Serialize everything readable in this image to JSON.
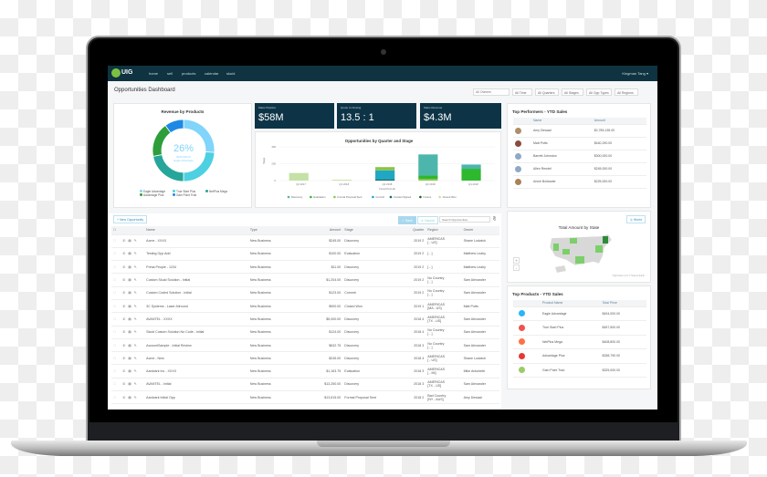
{
  "nav": {
    "logo": "UIG",
    "items": [
      "home",
      "sell",
      "products",
      "calendar",
      "skuid"
    ],
    "user": "Kingman Tang ▾"
  },
  "page": {
    "title": "Opportunities Dashboard"
  },
  "filters": {
    "owners_placeholder": "All Owners",
    "items": [
      "All Time",
      "All Quarters",
      "All Stages",
      "All Opp Types",
      "All Regions"
    ]
  },
  "kpis": [
    {
      "label": "Sales Pipeline",
      "value": "$58M"
    },
    {
      "label": "Quote to Closing",
      "value": "13.5 : 1"
    },
    {
      "label": "Sales Revenue",
      "value": "$4.3M"
    }
  ],
  "revenue": {
    "title": "Revenue by Products",
    "center_pct": "26%",
    "center_amount": "$494,000.00",
    "center_label": "Eagle Advantage",
    "chart_data": {
      "type": "pie",
      "title": "Revenue by Products",
      "slices": [
        {
          "name": "Eagle Advantage",
          "value": 26,
          "color": "#81d4fa"
        },
        {
          "name": "True Start Plus",
          "value": 24,
          "color": "#4dd0e1"
        },
        {
          "name": "NetPlus Mega",
          "value": 22,
          "color": "#26a69a"
        },
        {
          "name": "Advantage Plus",
          "value": 18,
          "color": "#2e9e3a"
        },
        {
          "name": "Gain Point Trad",
          "value": 10,
          "color": "#1e88e5"
        }
      ]
    }
  },
  "bars": {
    "chart_data": {
      "type": "bar",
      "title": "Opportunities by Quarter and Stage",
      "xlabel": "Fiscal Periods",
      "ylabel": "Stage",
      "ylim": [
        0,
        400
      ],
      "yticks": [
        "400",
        "200",
        "0"
      ],
      "legend": "bottom",
      "categories": [
        "Q4 2017",
        "Q1 2018",
        "Q2 2018",
        "Q3 2018",
        "Q4 2018"
      ],
      "series": [
        {
          "name": "Discovery",
          "color": "#4db6ac",
          "values": [
            0,
            0,
            0,
            250,
            50
          ]
        },
        {
          "name": "Evaluation",
          "color": "#2eb82e",
          "values": [
            0,
            0,
            0,
            40,
            140
          ]
        },
        {
          "name": "Formal Proposal Sent",
          "color": "#8bc34a",
          "values": [
            0,
            0,
            40,
            20,
            0
          ]
        },
        {
          "name": "Commit",
          "color": "#1fa8c4",
          "values": [
            0,
            0,
            105,
            0,
            0
          ]
        },
        {
          "name": "Contact Signed",
          "color": "#0f6b6b",
          "values": [
            0,
            0,
            15,
            0,
            0
          ]
        },
        {
          "name": "Invoice",
          "color": "#1b5e20",
          "values": [
            0,
            0,
            0,
            0,
            0
          ]
        },
        {
          "name": "Closed Won",
          "color": "#c5e1a5",
          "values": [
            90,
            10,
            0,
            0,
            0
          ]
        }
      ]
    }
  },
  "performers": {
    "title": "Top Performers - YTD Sales",
    "cols": [
      "Name",
      "Amount"
    ],
    "rows": [
      {
        "name": "Amy Dewaal",
        "amount": "$2,789,135.00",
        "color": "#b08d6a"
      },
      {
        "name": "Matt Potts",
        "amount": "$440,290.00",
        "color": "#8a4b3a"
      },
      {
        "name": "Barrett Johnston",
        "amount": "$300,000.00",
        "color": "#8fa8c8"
      },
      {
        "name": "Allen Rendel",
        "amount": "$245,000.00",
        "color": "#8fa8c8"
      },
      {
        "name": "Annie Bollander",
        "amount": "$225,000.00",
        "color": "#a88358"
      }
    ]
  },
  "map": {
    "title": "Total Amount by State",
    "button": "World",
    "credit": "Highcharts.com © Natural Earth",
    "zoom_in": "+",
    "zoom_out": "-"
  },
  "products": {
    "title": "Top Products - YTD Sales",
    "cols": [
      "Product Name",
      "Total Price"
    ],
    "rows": [
      {
        "name": "Eagle Advantage",
        "price": "$494,000.00",
        "color": "#29b6f6"
      },
      {
        "name": "True Start Plus",
        "price": "$457,500.00",
        "color": "#ef5350"
      },
      {
        "name": "NetPlus Mega",
        "price": "$408,800.00",
        "color": "#ff7043"
      },
      {
        "name": "Advantage Plus",
        "price": "$338,790.00",
        "color": "#e53935"
      },
      {
        "name": "Gain Point Trad",
        "price": "$325,000.00",
        "color": "#9ccc65"
      }
    ]
  },
  "table": {
    "new_button": "+ New Opportunity",
    "save": "✓ Save",
    "cancel": "✕ Cancel",
    "search_placeholder": "Search Opportunities",
    "cols": [
      "Name",
      "Type",
      "Amount",
      "Stage",
      "Quarter",
      "Region",
      "Owner"
    ],
    "rows": [
      [
        "Acme - XXXX",
        "New Business",
        "$245.00",
        "Discovery",
        "2019 2",
        "AMERICAS|[ - US]",
        "Shane Ludwick"
      ],
      [
        "Testing Opp Add",
        "New Business",
        "$100.00",
        "Evaluation",
        "2019 2",
        "[ - ]",
        "Matthew Leahy"
      ],
      [
        "Prima People - 1234",
        "New Business",
        "$11.00",
        "Discovery",
        "2019 2",
        "[ - ]",
        "Matthew Leahy"
      ],
      [
        "Custom Skuid Solution - Initial",
        "New Business",
        "$1,204.00",
        "Discovery",
        "2019 2",
        "No Country|[ - ]",
        "Sam Alexander"
      ],
      [
        "Custom Coded Solution - Initial",
        "New Business",
        "$123.00",
        "Commit",
        "2019 2",
        "No Country|[ - ]",
        "Sam Alexander"
      ],
      [
        "3C Systems - Laser Allround",
        "New Business",
        "$900.00",
        "Closed Won",
        "2019 1",
        "AMERICAS|[MA - US]",
        "Matt Potts"
      ],
      [
        "AVANTEL - XXXX",
        "New Business",
        "$5,000.00",
        "Discovery",
        "2018 4",
        "AMERICAS|[TX - US]",
        "Sam Alexander"
      ],
      [
        "Skuid Custom Solution No Code - Initial",
        "New Business",
        "$124.00",
        "Discovery",
        "2018 4",
        "No Country|[ - ]",
        "Sam Alexander"
      ],
      [
        "AccountSample - Initial Review",
        "New Business",
        "$632.75",
        "Discovery",
        "2018 3",
        "No Country|[ - ]",
        "Sam Alexander"
      ],
      [
        "Acme - New",
        "New Business",
        "$245.00",
        "Discovery",
        "2018 4",
        "AMERICAS|[ - US]",
        "Shane Ludwick"
      ],
      [
        "Aardvark Inc - XXXX",
        "New Business",
        "$1,163.75",
        "Evaluation",
        "2018 3",
        "AMERICAS|[ - MI]",
        "Mike Antonietti"
      ],
      [
        "AVANTEL - Initial",
        "New Business",
        "$13,250.00",
        "Discovery",
        "2018 3",
        "AMERICAS|[TX - US]",
        "Sam Alexander"
      ],
      [
        "Aardvark Initial Opp",
        "New Business",
        "$13,615.00",
        "Formal Proposal Sent",
        "2018 2",
        "Bad Country|[NY - AUS]",
        "Amy Dewaal"
      ]
    ]
  }
}
